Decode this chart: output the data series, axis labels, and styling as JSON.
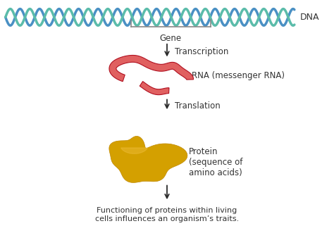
{
  "bg_color": "#ffffff",
  "dna_label": "DNA",
  "gene_label": "Gene",
  "transcription_label": "Transcription",
  "rna_label": "RNA (messenger RNA)",
  "translation_label": "Translation",
  "protein_label": "Protein\n(sequence of\namino acids)",
  "function_label": "Functioning of proteins within living\ncells influences an organism’s traits.",
  "arrow_color": "#2a2a2a",
  "text_color": "#333333",
  "dna_color1": "#4a90c4",
  "dna_color2": "#5bbcaa",
  "rna_color_dark": "#b01020",
  "rna_color_light": "#e06060",
  "protein_color": "#d4a000",
  "protein_edge": "#c08800",
  "bracket_color": "#888888"
}
